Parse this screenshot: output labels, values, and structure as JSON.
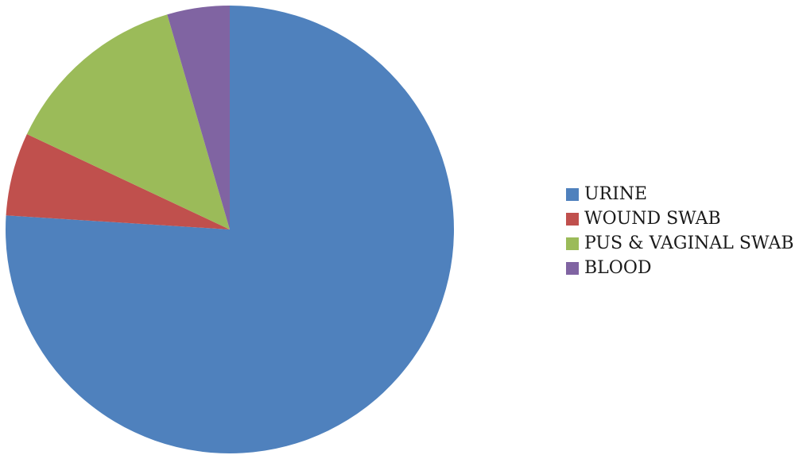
{
  "chart_data": {
    "type": "pie",
    "title": "",
    "slices": [
      {
        "label": "URINE",
        "value": 76,
        "color": "#4F81BD"
      },
      {
        "label": "WOUND SWAB",
        "value": 6,
        "color": "#C0504D"
      },
      {
        "label": "PUS & VAGINAL SWAB",
        "value": 13.5,
        "color": "#9BBB59"
      },
      {
        "label": "BLOOD",
        "value": 4.5,
        "color": "#8064A2"
      }
    ],
    "start_angle_deg": 0,
    "direction": "clockwise",
    "legend_position": "right"
  }
}
